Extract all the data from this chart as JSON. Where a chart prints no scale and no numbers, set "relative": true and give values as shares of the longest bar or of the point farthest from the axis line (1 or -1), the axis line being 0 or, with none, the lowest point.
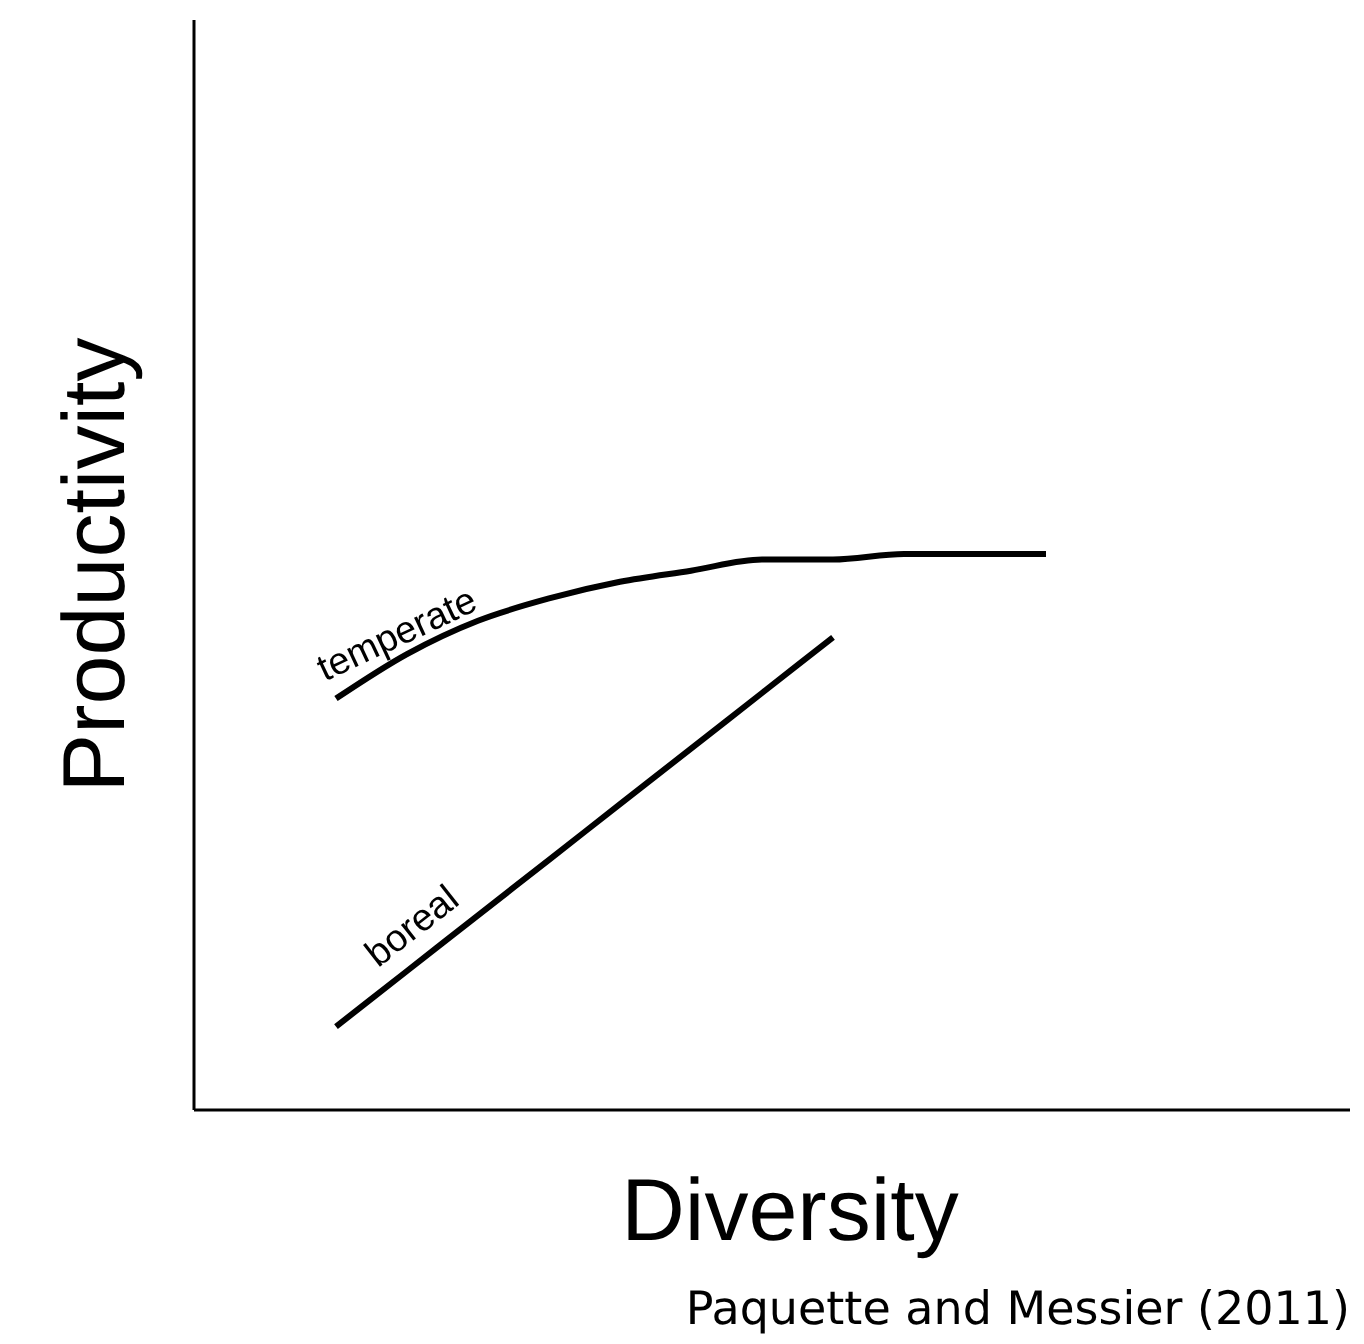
{
  "chart_data": {
    "type": "line",
    "relative": true,
    "xlabel": "Diversity",
    "ylabel": "Productivity",
    "annotations": [
      "Paquette and Messier (2011)"
    ],
    "categories": [
      null,
      null,
      null,
      null,
      null,
      null,
      null,
      null,
      null,
      null,
      null,
      null,
      null,
      null,
      null,
      null,
      null
    ],
    "series": [
      {
        "name": "temperate",
        "color": "#000000",
        "values": [
          null,
          null,
          0.74,
          0.82,
          0.88,
          0.92,
          0.95,
          0.97,
          0.99,
          0.99,
          1,
          1,
          1,
          null,
          null,
          null,
          null
        ]
      },
      {
        "name": "boreal",
        "color": "#000000",
        "values": [
          null,
          null,
          0.15,
          0.25,
          0.35,
          0.45,
          0.55,
          0.65,
          0.75,
          0.85,
          null,
          null,
          null,
          null,
          null,
          null,
          null
        ]
      }
    ],
    "legend": false,
    "line_style": "solid",
    "marker": "none"
  }
}
